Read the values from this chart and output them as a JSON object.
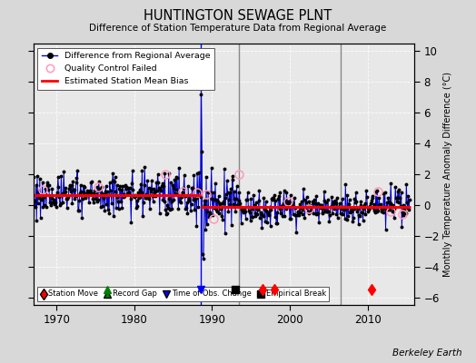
{
  "title": "HUNTINGTON SEWAGE PLNT",
  "subtitle": "Difference of Station Temperature Data from Regional Average",
  "ylabel_right": "Monthly Temperature Anomaly Difference (°C)",
  "credit": "Berkeley Earth",
  "xlim": [
    1967,
    2016
  ],
  "ylim": [
    -6.5,
    10.5
  ],
  "yticks": [
    -6,
    -4,
    -2,
    0,
    2,
    4,
    6,
    8,
    10
  ],
  "xticks": [
    1970,
    1980,
    1990,
    2000,
    2010
  ],
  "bg_color": "#d8d8d8",
  "plot_bg_color": "#e8e8e8",
  "line_color": "#0000cc",
  "dot_color": "#000000",
  "bias_color": "#ff0000",
  "qc_edge_color": "#ff99bb",
  "vertical_lines": [
    1988.5,
    1993.5,
    2006.5
  ],
  "vertical_line_colors": [
    "#0000ff",
    "#888888",
    "#888888"
  ],
  "bias_segments": [
    {
      "x": [
        1967,
        1988.5
      ],
      "y": [
        0.65,
        0.65
      ]
    },
    {
      "x": [
        1988.5,
        2015.5
      ],
      "y": [
        -0.15,
        -0.15
      ]
    }
  ],
  "station_moves": [
    1996.5,
    1998.0,
    2010.5
  ],
  "record_gap": [
    1976.5
  ],
  "time_of_obs_change": [
    1988.5
  ],
  "empirical_break": [
    1993.0
  ],
  "marker_y": -5.5,
  "seed": 42
}
